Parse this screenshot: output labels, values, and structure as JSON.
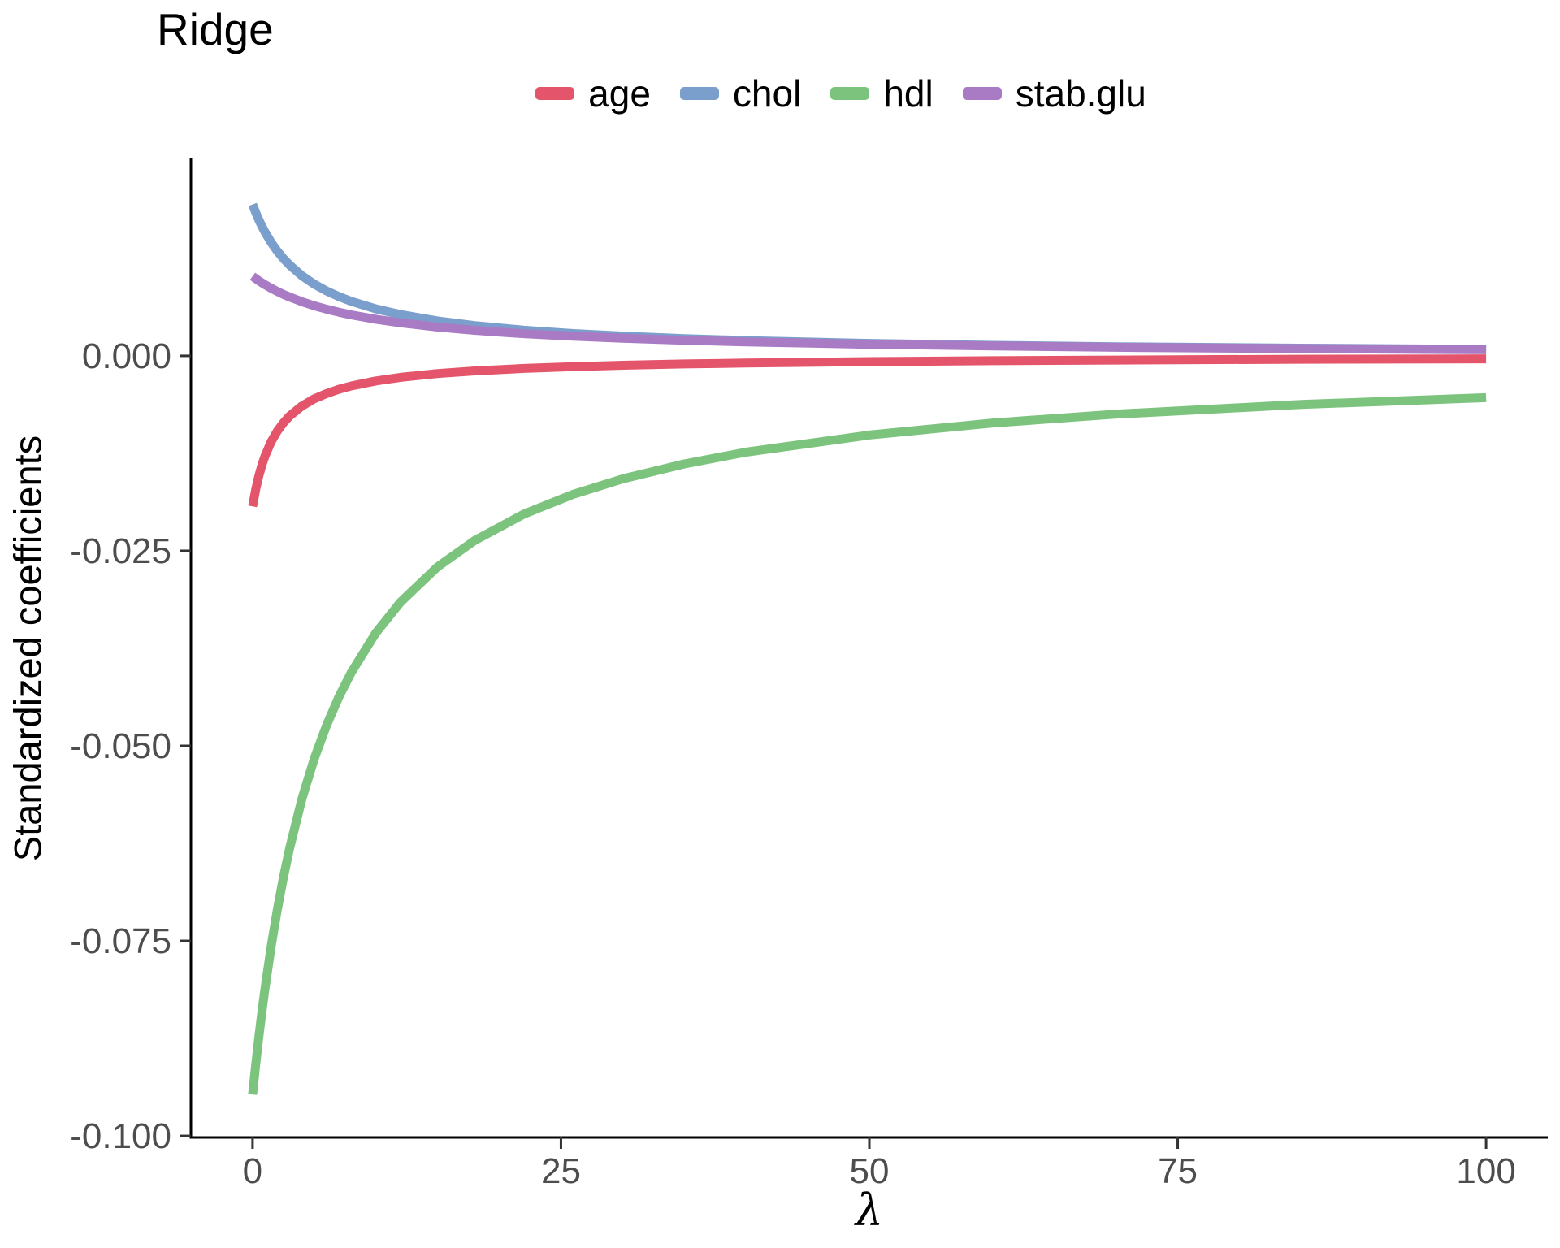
{
  "title": "Ridge",
  "colors": {
    "background": "#FFFFFF",
    "axis_line": "#000000",
    "tick_mark": "#333333",
    "tick_label": "#4D4D4D",
    "title_text": "#000000"
  },
  "chart_data": {
    "type": "line",
    "title": "Ridge",
    "xlabel": "λ",
    "ylabel": "Standardized coefficients",
    "grid": "off",
    "legend_position": "top-center",
    "xlim": [
      -5,
      105
    ],
    "ylim": [
      -0.1002,
      0.0253
    ],
    "x_ticks": [
      {
        "value": 0,
        "label": "0"
      },
      {
        "value": 25,
        "label": "25"
      },
      {
        "value": 50,
        "label": "50"
      },
      {
        "value": 75,
        "label": "75"
      },
      {
        "value": 100,
        "label": "100"
      }
    ],
    "y_ticks": [
      {
        "value": 0.0,
        "label": "0.000"
      },
      {
        "value": -0.025,
        "label": "-0.025"
      },
      {
        "value": -0.05,
        "label": "-0.050"
      },
      {
        "value": -0.075,
        "label": "-0.075"
      },
      {
        "value": -0.1,
        "label": "-0.100"
      }
    ],
    "x": [
      0,
      0.25,
      0.5,
      0.75,
      1,
      1.5,
      2,
      2.5,
      3,
      4,
      5,
      6,
      7,
      8,
      10,
      12,
      15,
      18,
      22,
      26,
      30,
      35,
      40,
      50,
      60,
      70,
      85,
      100
    ],
    "series": [
      {
        "name": "age",
        "color": "#E4546A",
        "values": [
          -0.0193,
          -0.01716,
          -0.01544,
          -0.01404,
          -0.01287,
          -0.01103,
          -0.00965,
          -0.00858,
          -0.00772,
          -0.00643,
          -0.00551,
          -0.00483,
          -0.00429,
          -0.00386,
          -0.00322,
          -0.00276,
          -0.00227,
          -0.00193,
          -0.00161,
          -0.00138,
          -0.00121,
          -0.00104,
          -0.00092,
          -0.00074,
          -0.00062,
          -0.00054,
          -0.00044,
          -0.00038
        ]
      },
      {
        "name": "chol",
        "color": "#7B9FCC",
        "values": [
          0.0194,
          0.01838,
          0.01746,
          0.01663,
          0.01587,
          0.01455,
          0.01343,
          0.01247,
          0.01164,
          0.01027,
          0.00919,
          0.00831,
          0.00759,
          0.00698,
          0.00602,
          0.00529,
          0.00448,
          0.00388,
          0.00329,
          0.00286,
          0.00253,
          0.00221,
          0.00196,
          0.0016,
          0.00135,
          0.00117,
          0.00098,
          0.00084
        ]
      },
      {
        "name": "hdl",
        "color": "#7CC47E",
        "values": [
          -0.0947,
          -0.09091,
          -0.08742,
          -0.08418,
          -0.08117,
          -0.07576,
          -0.07103,
          -0.06685,
          -0.06313,
          -0.05682,
          -0.05165,
          -0.04735,
          -0.04371,
          -0.04059,
          -0.03551,
          -0.03157,
          -0.02706,
          -0.02368,
          -0.02029,
          -0.01776,
          -0.01578,
          -0.01386,
          -0.01235,
          -0.01015,
          -0.00861,
          -0.00748,
          -0.00624,
          -0.00536
        ]
      },
      {
        "name": "stab.glu",
        "color": "#A87BC4",
        "values": [
          0.0102,
          0.00991,
          0.00963,
          0.00937,
          0.00913,
          0.00867,
          0.00826,
          0.00788,
          0.00754,
          0.00694,
          0.00642,
          0.00598,
          0.00559,
          0.00525,
          0.00469,
          0.00423,
          0.00369,
          0.00327,
          0.00284,
          0.00251,
          0.00225,
          0.00199,
          0.00179,
          0.00148,
          0.00127,
          0.0011,
          0.00093,
          0.00078
        ]
      }
    ]
  }
}
